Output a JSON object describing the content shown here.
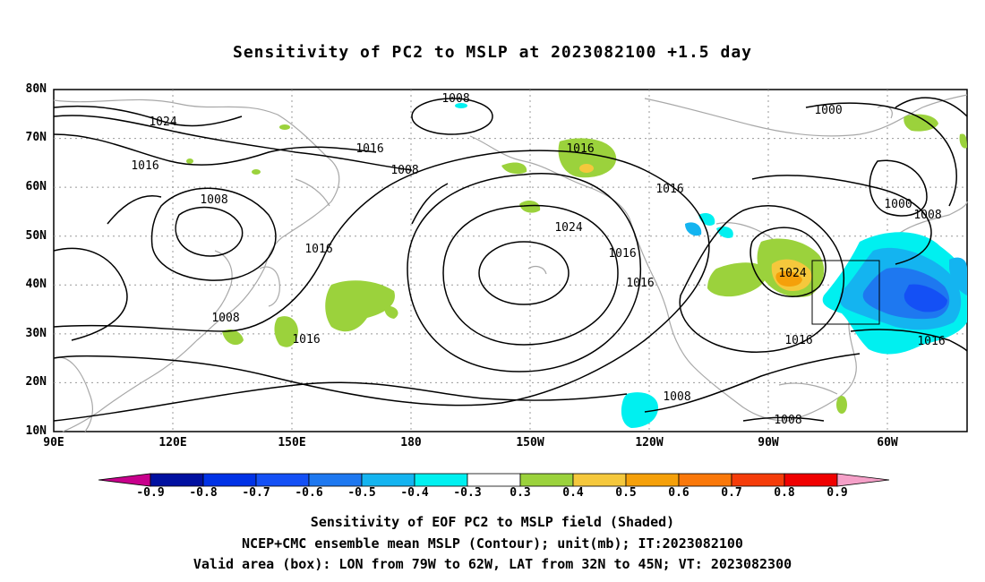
{
  "title": "Sensitivity of PC2 to MSLP at 2023082100 +1.5 day",
  "y_ticks": [
    "80N",
    "70N",
    "60N",
    "50N",
    "40N",
    "30N",
    "20N",
    "10N"
  ],
  "x_ticks": [
    "90E",
    "120E",
    "150E",
    "180",
    "150W",
    "120W",
    "90W",
    "60W"
  ],
  "colorbar": {
    "labels": [
      "-0.9",
      "-0.8",
      "-0.7",
      "-0.6",
      "-0.5",
      "-0.4",
      "-0.3",
      "0.3",
      "0.4",
      "0.5",
      "0.6",
      "0.7",
      "0.8",
      "0.9"
    ],
    "colors": [
      "#c8008c",
      "#0010a0",
      "#0032e6",
      "#1450f5",
      "#1e78f0",
      "#14b4f0",
      "#00f0f0",
      "#ffffff",
      "#9bd23c",
      "#f5c83c",
      "#f5a00a",
      "#fa780a",
      "#f53c0a",
      "#f00000",
      "#f5a0c8"
    ]
  },
  "contour_labels": [
    {
      "t": "1008",
      "lon": "170W",
      "lat": "79N"
    },
    {
      "t": "1024",
      "lon": "120E",
      "lat": "72N"
    },
    {
      "t": "1016",
      "lon": "143E",
      "lat": "66N"
    },
    {
      "t": "1016",
      "lon": "115E",
      "lat": "63N"
    },
    {
      "t": "1008",
      "lon": "165E",
      "lat": "62N"
    },
    {
      "t": "1016",
      "lon": "162W",
      "lat": "66N"
    },
    {
      "t": "1008",
      "lon": "122E",
      "lat": "57N"
    },
    {
      "t": "1016",
      "lon": "135E",
      "lat": "48N"
    },
    {
      "t": "1024",
      "lon": "150W",
      "lat": "51N"
    },
    {
      "t": "1016",
      "lon": "128W",
      "lat": "46N"
    },
    {
      "t": "1016",
      "lon": "122W",
      "lat": "40N"
    },
    {
      "t": "1016",
      "lon": "95W",
      "lat": "61N"
    },
    {
      "t": "1008",
      "lon": "118E",
      "lat": "34N"
    },
    {
      "t": "1016",
      "lon": "130E",
      "lat": "29N"
    },
    {
      "t": "1000",
      "lon": "73W",
      "lat": "74N"
    },
    {
      "t": "1000",
      "lon": "73W",
      "lat": "54N"
    },
    {
      "t": "1008",
      "lon": "68W",
      "lat": "52N"
    },
    {
      "t": "1024",
      "lon": "84W",
      "lat": "42N"
    },
    {
      "t": "1016",
      "lon": "82W",
      "lat": "29N"
    },
    {
      "t": "1016",
      "lon": "65W",
      "lat": "29N"
    },
    {
      "t": "1008",
      "lon": "103W",
      "lat": "17N"
    },
    {
      "t": "1008",
      "lon": "85W",
      "lat": "12N"
    }
  ],
  "caption": {
    "line1": "Sensitivity of EOF PC2 to MSLP field (Shaded)",
    "line2": "NCEP+CMC ensemble mean MSLP (Contour); unit(mb); IT:2023082100",
    "line3": "Valid area (box): LON from 79W to 62W, LAT from 32N to 45N; VT: 2023082300"
  }
}
